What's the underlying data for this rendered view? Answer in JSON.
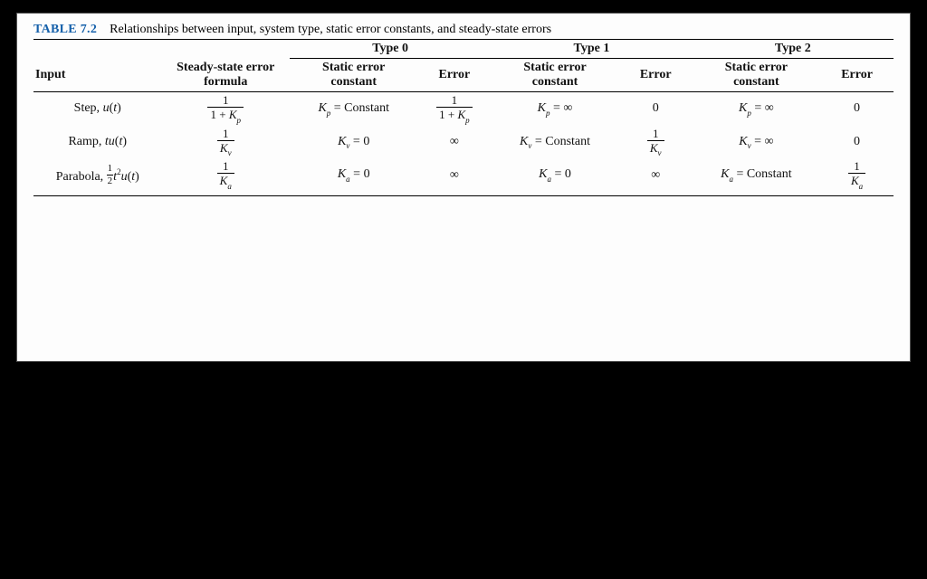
{
  "title": {
    "label": "TABLE 7.2",
    "desc": "Relationships between input, system type, static error constants, and steady-state errors"
  },
  "header": {
    "type0": "Type 0",
    "type1": "Type 1",
    "type2": "Type 2",
    "input": "Input",
    "sse_line1": "Steady-state error",
    "sse_line2": "formula",
    "const_line1": "Static error",
    "const_line2": "constant",
    "error": "Error"
  },
  "math": {
    "one": "1",
    "one_plus_Kp": [
      "1 + ",
      "K",
      "p"
    ],
    "Kv": [
      "K",
      "v"
    ],
    "Ka": [
      "K",
      "a"
    ],
    "Kp": [
      "K",
      "p"
    ],
    "zero": "0",
    "inf": "∞",
    "eq_const": " = Constant",
    "eq_zero": " = 0",
    "eq_inf": " = ∞"
  },
  "rows": {
    "step": {
      "input_label": "Step, ",
      "input_fn_var": "u",
      "input_fn_arg": "t"
    },
    "ramp": {
      "input_label": "Ramp, ",
      "input_fn_pre": "tu",
      "input_fn_arg": "t"
    },
    "parabola": {
      "input_label": "Parabola,",
      "half_num": "1",
      "half_den": "2",
      "t_var": "t",
      "t_exp": "2",
      "u_var": "u",
      "u_arg": "t"
    }
  },
  "style": {
    "label_color": "#1560aa",
    "page_bg": "#fdfdfd",
    "body_bg": "#000000",
    "font_family": "Times New Roman",
    "title_fontsize": 14,
    "cell_fontsize": 14,
    "sub_fontsize": 9
  }
}
